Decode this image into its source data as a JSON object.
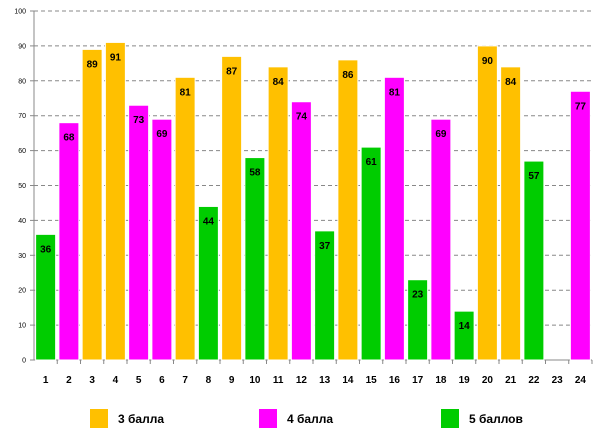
{
  "chart_data": {
    "type": "bar",
    "title": "",
    "xlabel": "",
    "ylabel": "",
    "ylim": [
      0,
      100
    ],
    "yticks": [
      0,
      10,
      20,
      30,
      40,
      50,
      60,
      70,
      80,
      90,
      100
    ],
    "grid": true,
    "legend_position": "bottom",
    "categories": [
      "1",
      "2",
      "3",
      "4",
      "5",
      "6",
      "7",
      "8",
      "9",
      "10",
      "11",
      "12",
      "13",
      "14",
      "15",
      "16",
      "17",
      "18",
      "19",
      "20",
      "21",
      "22",
      "23",
      "24"
    ],
    "values": [
      36,
      68,
      89,
      91,
      73,
      69,
      81,
      44,
      87,
      58,
      84,
      74,
      37,
      86,
      61,
      81,
      23,
      69,
      14,
      90,
      84,
      57,
      null,
      77
    ],
    "groups": [
      2,
      1,
      0,
      0,
      1,
      1,
      0,
      2,
      0,
      2,
      0,
      1,
      2,
      0,
      2,
      1,
      2,
      1,
      2,
      0,
      0,
      2,
      null,
      1
    ],
    "series": [
      {
        "name": "3 балла",
        "color": "#FFC000"
      },
      {
        "name": "4 балла",
        "color": "#FF00FF"
      },
      {
        "name": "5 баллов",
        "color": "#00CC00"
      }
    ]
  }
}
